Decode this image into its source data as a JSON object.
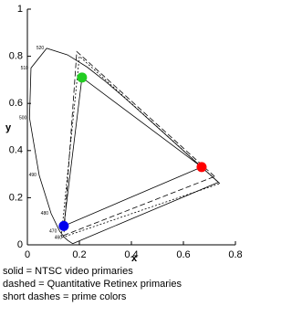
{
  "chart_data": {
    "type": "line",
    "xlabel": "x",
    "ylabel": "y",
    "xlim": [
      0,
      0.8
    ],
    "ylim": [
      0,
      1
    ],
    "xticks": [
      0,
      0.2,
      0.4,
      0.6,
      0.8
    ],
    "yticks": [
      0,
      0.2,
      0.4,
      0.6,
      0.8,
      1
    ],
    "locus": {
      "x": [
        0.1741,
        0.1566,
        0.144,
        0.1241,
        0.0913,
        0.0454,
        0.0082,
        0.0139,
        0.0743,
        0.1547,
        0.2296,
        0.3016,
        0.3731,
        0.4441,
        0.5125,
        0.5752,
        0.627,
        0.6915,
        0.7347,
        0.1741
      ],
      "y": [
        0.005,
        0.0177,
        0.0297,
        0.0578,
        0.1327,
        0.295,
        0.5384,
        0.7502,
        0.8338,
        0.8059,
        0.7543,
        0.6923,
        0.6245,
        0.5547,
        0.4866,
        0.4242,
        0.3725,
        0.3083,
        0.2653,
        0.005
      ],
      "labels": [
        null,
        null,
        460,
        470,
        480,
        490,
        500,
        510,
        520,
        null,
        null,
        null,
        null,
        null,
        null,
        null,
        null,
        null,
        null,
        null
      ]
    },
    "series": [
      {
        "name": "solid = NTSC video primaries",
        "style": "solid",
        "x": [
          0.67,
          0.21,
          0.14,
          0.67
        ],
        "y": [
          0.33,
          0.71,
          0.08,
          0.33
        ]
      },
      {
        "name": "dashed = Quantitative Retinex primaries",
        "style": "dashed",
        "x": [
          0.72,
          0.19,
          0.14,
          0.72
        ],
        "y": [
          0.29,
          0.82,
          0.04,
          0.29
        ]
      },
      {
        "name": "short dashes = prime colors",
        "style": "short",
        "x": [
          0.74,
          0.2,
          0.13,
          0.74
        ],
        "y": [
          0.26,
          0.8,
          0.03,
          0.26
        ]
      }
    ],
    "points": {
      "x": [
        0.67,
        0.21,
        0.14
      ],
      "y": [
        0.33,
        0.71,
        0.08
      ],
      "colors": [
        "#ff0000",
        "#22cc22",
        "#0000ee"
      ]
    }
  }
}
